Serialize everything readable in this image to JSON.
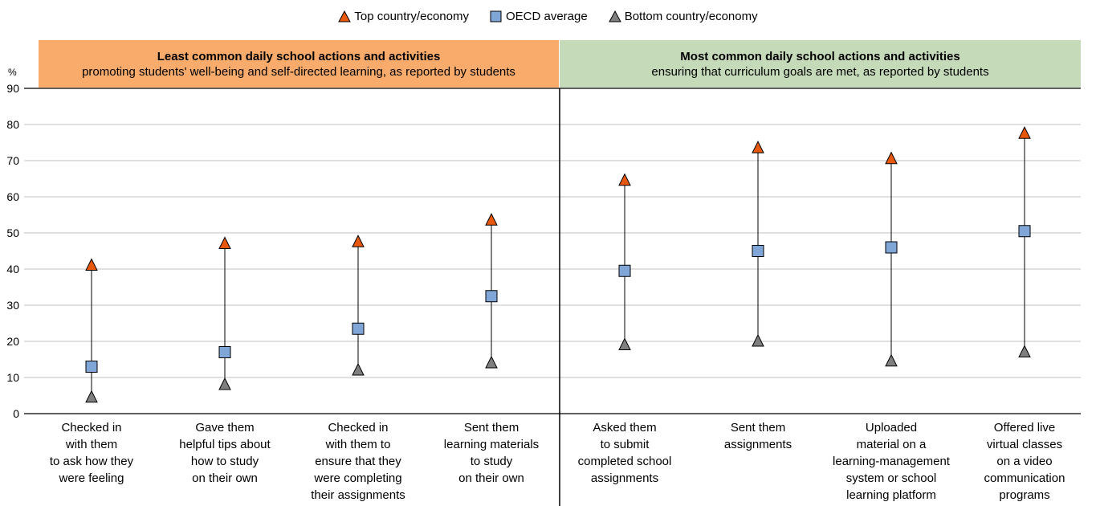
{
  "legend": {
    "top_label": "Top country/economy",
    "oecd_label": "OECD average",
    "bottom_label": "Bottom country/economy"
  },
  "panels": {
    "left": {
      "title": "Least common daily school actions and activities",
      "subtitle": "promoting students' well-being and self-directed learning, as reported by students"
    },
    "right": {
      "title": "Most common daily school actions and activities",
      "subtitle": "ensuring that curriculum goals are met, as reported by students"
    }
  },
  "y_unit": "%",
  "colors": {
    "top": "#e8580c",
    "oecd": "#7fa6d6",
    "bottom": "#7f7f7f",
    "left_panel": "#f8ab6b",
    "right_panel": "#c5dab8",
    "grid": "#c0c0c0"
  },
  "chart_data": {
    "type": "scatter",
    "categories": [
      "Checked in with them to ask how they were feeling",
      "Gave them helpful tips about how to study on their own",
      "Checked in with them to ensure that they were completing their assignments",
      "Sent them learning materials to study on their own",
      "Asked them to submit completed school assignments",
      "Sent them assignments",
      "Uploaded material on a learning-management system or school learning platform",
      "Offered live virtual classes on a video communication programs"
    ],
    "category_label_lines": [
      [
        "Checked in",
        "with them",
        "to ask how they",
        "were feeling"
      ],
      [
        "Gave them",
        "helpful tips about",
        "how to study",
        "on their own"
      ],
      [
        "Checked in",
        "with them to",
        "ensure that they",
        "were completing",
        "their assignments"
      ],
      [
        "Sent them",
        "learning materials",
        "to study",
        "on their own"
      ],
      [
        "Asked them",
        "to submit",
        "completed school",
        "assignments"
      ],
      [
        "Sent them",
        "assignments"
      ],
      [
        "Uploaded",
        "material on a",
        "learning-management",
        "system or school",
        "learning platform"
      ],
      [
        "Offered live",
        "virtual classes",
        "on a video",
        "communication",
        "programs"
      ]
    ],
    "series": [
      {
        "name": "Top country/economy",
        "marker": "triangle",
        "values": [
          41,
          47,
          47.5,
          53.5,
          64.5,
          73.5,
          70.5,
          77.5
        ]
      },
      {
        "name": "OECD average",
        "marker": "square",
        "values": [
          13,
          17,
          23.5,
          32.5,
          39.5,
          45,
          46,
          50.5
        ]
      },
      {
        "name": "Bottom country/economy",
        "marker": "triangle",
        "values": [
          4.5,
          8,
          12,
          14,
          19,
          20,
          14.5,
          17
        ]
      }
    ],
    "ylim": [
      0,
      90
    ],
    "yticks": [
      0,
      10,
      20,
      30,
      40,
      50,
      60,
      70,
      80,
      90
    ],
    "ylabel": "%",
    "grid": true,
    "legend_position": "top-center"
  }
}
